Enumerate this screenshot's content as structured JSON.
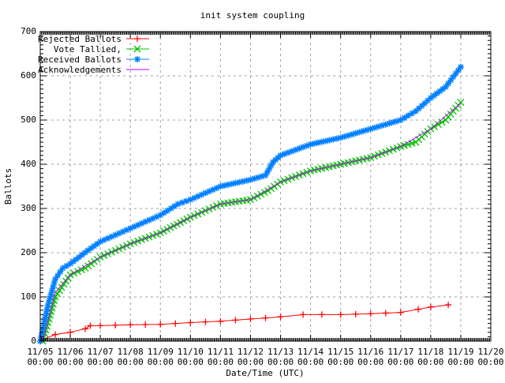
{
  "chart_data": {
    "type": "line",
    "title": "init system coupling",
    "xlabel": "Date/Time (UTC)",
    "ylabel": "Ballots",
    "ylim": [
      0,
      700
    ],
    "y_ticks": [
      "0",
      "100",
      "200",
      "300",
      "400",
      "500",
      "600",
      "700"
    ],
    "x_ticks": [
      [
        "11/05",
        "00:00"
      ],
      [
        "11/06",
        "00:00"
      ],
      [
        "11/07",
        "00:00"
      ],
      [
        "11/08",
        "00:00"
      ],
      [
        "11/09",
        "00:00"
      ],
      [
        "11/10",
        "00:00"
      ],
      [
        "11/11",
        "00:00"
      ],
      [
        "11/12",
        "00:00"
      ],
      [
        "11/13",
        "00:00"
      ],
      [
        "11/14",
        "00:00"
      ],
      [
        "11/15",
        "00:00"
      ],
      [
        "11/16",
        "00:00"
      ],
      [
        "11/17",
        "00:00"
      ],
      [
        "11/18",
        "00:00"
      ],
      [
        "11/19",
        "00:00"
      ],
      [
        "11/20",
        "00:00"
      ]
    ],
    "grid": true,
    "legend_position": "top-left",
    "series": [
      {
        "name": "Rejected Ballots",
        "color": "#ff0000",
        "marker": "plus",
        "points": [
          [
            "11/05 00:00",
            0
          ],
          [
            "11/05 03:00",
            5
          ],
          [
            "11/05 12:00",
            15
          ],
          [
            "11/06 00:00",
            20
          ],
          [
            "11/06 12:00",
            28
          ],
          [
            "11/06 16:00",
            35
          ],
          [
            "11/07 00:00",
            35
          ],
          [
            "11/08 00:00",
            37
          ],
          [
            "11/09 00:00",
            38
          ],
          [
            "11/10 00:00",
            42
          ],
          [
            "11/11 00:00",
            45
          ],
          [
            "11/12 00:00",
            50
          ],
          [
            "11/13 00:00",
            55
          ],
          [
            "11/13 18:00",
            60
          ],
          [
            "11/15 00:00",
            60
          ],
          [
            "11/16 00:00",
            62
          ],
          [
            "11/17 00:00",
            65
          ],
          [
            "11/17 14:00",
            72
          ],
          [
            "11/18 00:00",
            77
          ],
          [
            "11/18 14:00",
            82
          ]
        ]
      },
      {
        "name": "Vote Tallied,",
        "color": "#00c000",
        "marker": "x",
        "points": [
          [
            "11/05 02:00",
            0
          ],
          [
            "11/05 12:00",
            100
          ],
          [
            "11/06 00:00",
            150
          ],
          [
            "11/06 12:00",
            165
          ],
          [
            "11/07 00:00",
            190
          ],
          [
            "11/08 00:00",
            220
          ],
          [
            "11/09 00:00",
            245
          ],
          [
            "11/10 00:00",
            280
          ],
          [
            "11/11 00:00",
            310
          ],
          [
            "11/12 00:00",
            320
          ],
          [
            "11/12 14:00",
            340
          ],
          [
            "11/13 00:00",
            360
          ],
          [
            "11/14 00:00",
            385
          ],
          [
            "11/15 00:00",
            400
          ],
          [
            "11/16 00:00",
            415
          ],
          [
            "11/17 00:00",
            440
          ],
          [
            "11/17 12:00",
            450
          ],
          [
            "11/18 00:00",
            480
          ],
          [
            "11/18 12:00",
            500
          ],
          [
            "11/19 00:00",
            540
          ]
        ]
      },
      {
        "name": "Received Ballots",
        "color": "#0080ff",
        "marker": "star",
        "points": [
          [
            "11/05 00:00",
            0
          ],
          [
            "11/05 06:00",
            80
          ],
          [
            "11/05 12:00",
            140
          ],
          [
            "11/05 18:00",
            165
          ],
          [
            "11/06 00:00",
            175
          ],
          [
            "11/06 14:00",
            205
          ],
          [
            "11/07 00:00",
            225
          ],
          [
            "11/08 00:00",
            255
          ],
          [
            "11/09 00:00",
            285
          ],
          [
            "11/09 14:00",
            310
          ],
          [
            "11/10 00:00",
            320
          ],
          [
            "11/11 00:00",
            350
          ],
          [
            "11/12 00:00",
            365
          ],
          [
            "11/12 12:00",
            375
          ],
          [
            "11/12 18:00",
            405
          ],
          [
            "11/13 00:00",
            420
          ],
          [
            "11/14 00:00",
            445
          ],
          [
            "11/15 00:00",
            460
          ],
          [
            "11/16 00:00",
            480
          ],
          [
            "11/17 00:00",
            500
          ],
          [
            "11/17 12:00",
            520
          ],
          [
            "11/18 00:00",
            550
          ],
          [
            "11/18 12:00",
            575
          ],
          [
            "11/19 00:00",
            620
          ]
        ]
      },
      {
        "name": "Acknowledgements",
        "color": "#c000ff",
        "marker": "none",
        "points": [
          [
            "11/05 02:00",
            0
          ],
          [
            "11/05 12:00",
            110
          ],
          [
            "11/06 00:00",
            150
          ],
          [
            "11/07 00:00",
            190
          ],
          [
            "11/08 00:00",
            220
          ],
          [
            "11/09 00:00",
            245
          ],
          [
            "11/10 00:00",
            280
          ],
          [
            "11/11 00:00",
            310
          ],
          [
            "11/12 00:00",
            320
          ],
          [
            "11/13 00:00",
            360
          ],
          [
            "11/14 00:00",
            385
          ],
          [
            "11/15 00:00",
            400
          ],
          [
            "11/16 00:00",
            415
          ],
          [
            "11/17 00:00",
            440
          ],
          [
            "11/18 00:00",
            480
          ],
          [
            "11/19 00:00",
            538
          ]
        ]
      }
    ]
  }
}
